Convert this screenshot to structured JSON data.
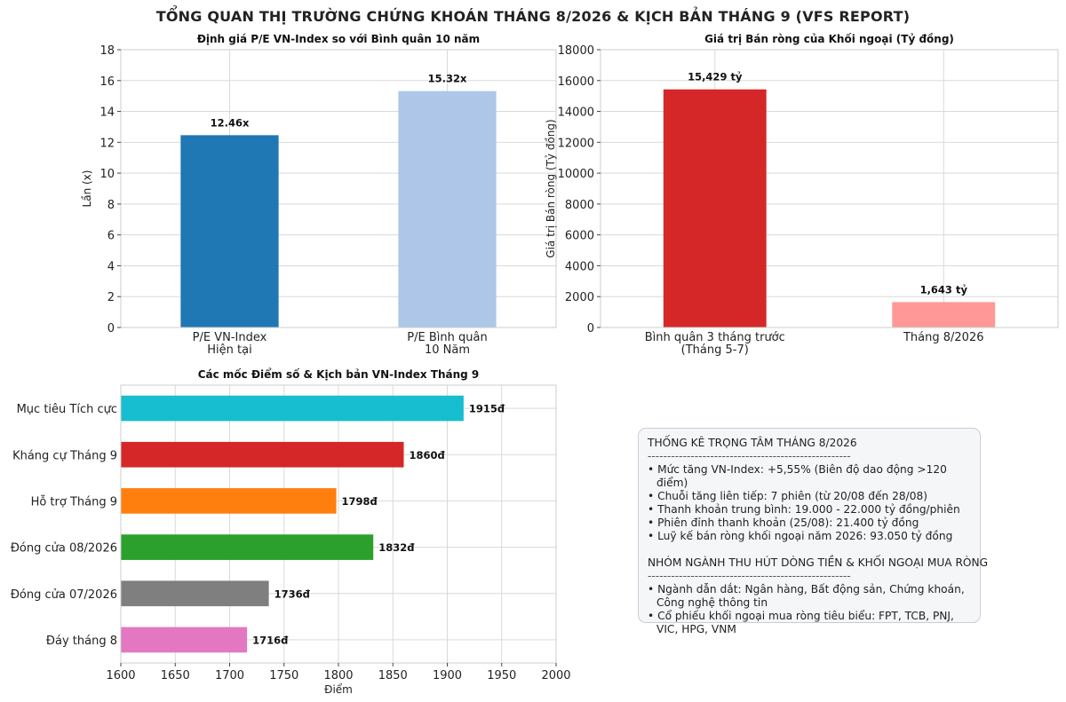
{
  "title": "TỔNG QUAN THỊ TRƯỜNG CHỨNG KHOÁN THÁNG 8/2026 & KỊCH BẢN THÁNG 9 (VFS REPORT)",
  "chart_data": [
    {
      "id": "pe",
      "type": "bar",
      "title": "Định giá P/E VN-Index so với Bình quân 10 năm",
      "ylabel": "Lần (x)",
      "xlabel": "",
      "ylim": [
        0,
        18
      ],
      "yticks": [
        "0",
        "2",
        "4",
        "6",
        "8",
        "10",
        "12",
        "14",
        "16",
        "18"
      ],
      "grid": true,
      "categories": [
        [
          "P/E VN-Index",
          "Hiện tại"
        ],
        [
          "P/E Bình quân",
          "10 Năm"
        ]
      ],
      "values": [
        12.46,
        15.32
      ],
      "value_labels": [
        "12.46x",
        "15.32x"
      ],
      "colors": [
        "#1f77b4",
        "#aec7e8"
      ]
    },
    {
      "id": "foreign",
      "type": "bar",
      "title": "Giá trị Bán ròng của Khối ngoại (Tỷ đồng)",
      "ylabel": "Giá trị Bán ròng (Tỷ đồng)",
      "xlabel": "",
      "ylim": [
        0,
        18000
      ],
      "yticks": [
        "0",
        "2000",
        "4000",
        "6000",
        "8000",
        "10000",
        "12000",
        "14000",
        "16000",
        "18000"
      ],
      "grid": true,
      "categories": [
        [
          "Bình quân 3 tháng trước",
          "(Tháng 5-7)"
        ],
        [
          "Tháng 8/2026"
        ]
      ],
      "values": [
        15429,
        1643
      ],
      "value_labels": [
        "15,429 tỷ",
        "1,643 tỷ"
      ],
      "colors": [
        "#d62728",
        "#ff9896"
      ]
    },
    {
      "id": "levels",
      "type": "barh",
      "title": "Các mốc Điểm số & Kịch bản VN-Index Tháng 9",
      "xlabel": "Điểm",
      "ylabel": "",
      "xlim": [
        1600,
        2000
      ],
      "xticks": [
        "1600",
        "1650",
        "1700",
        "1750",
        "1800",
        "1850",
        "1900",
        "1950",
        "2000"
      ],
      "grid": true,
      "categories": [
        "Mục tiêu Tích cực",
        "Kháng cự Tháng 9",
        "Hỗ trợ Tháng 9",
        "Đóng cửa 08/2026",
        "Đóng cửa 07/2026",
        "Đáy tháng 8"
      ],
      "values": [
        1915,
        1860,
        1798,
        1832,
        1736,
        1716
      ],
      "value_labels": [
        "1915đ",
        "1860đ",
        "1798đ",
        "1832đ",
        "1736đ",
        "1716đ"
      ],
      "colors": [
        "#17becf",
        "#d62728",
        "#ff7f0e",
        "#2ca02c",
        "#7f7f7f",
        "#e377c2"
      ]
    }
  ],
  "stats": {
    "section1_title": "THỐNG KÊ TRỌNG TÂM THÁNG 8/2026",
    "divider": "----------------------------------------------------",
    "section1_items": [
      "• Mức tăng VN-Index: +5,55% (Biên độ dao động >120 điểm)",
      "• Chuỗi tăng liên tiếp: 7 phiên (từ 20/08 đến 28/08)",
      "• Thanh khoản trung bình: 19.000 - 22.000 tỷ đồng/phiên",
      "• Phiên đỉnh thanh khoản (25/08): 21.400 tỷ đồng",
      "• Luỹ kế bán ròng khối ngoại năm 2026: 93.050 tỷ đồng"
    ],
    "section2_title": "NHÓM NGÀNH THU HÚT DÒNG TIỀN & KHỐI NGOẠI MUA RÒNG",
    "section2_items": [
      "• Ngành dẫn dắt: Ngân hàng, Bất động sản, Chứng khoán, Công nghệ thông tin",
      "• Cổ phiếu khối ngoại mua ròng tiêu biểu: FPT, TCB, PNJ, VIC, HPG, VNM"
    ]
  }
}
